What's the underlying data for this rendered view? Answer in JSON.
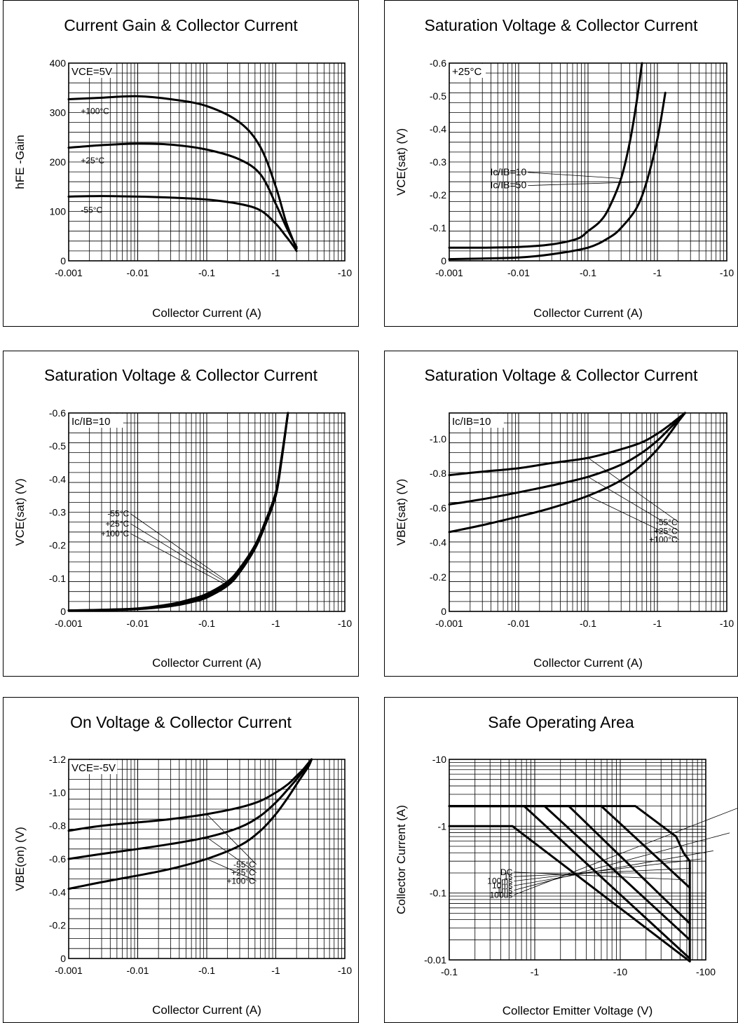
{
  "chart_data": [
    {
      "type": "line",
      "title": "Current Gain & Collector Current",
      "xlabel": "Collector Current (A)",
      "ylabel": "hFE -Gain",
      "x_scale": "log",
      "xlim": [
        -0.001,
        -10
      ],
      "ylim": [
        0,
        400
      ],
      "x_tick_labels": [
        "-0.001",
        "-0.01",
        "-0.1",
        "-1",
        "-10"
      ],
      "y_ticks": [
        0,
        100,
        200,
        300,
        400
      ],
      "y_tick_labels": [
        "0",
        "100",
        "200",
        "300",
        "400"
      ],
      "grid": true,
      "annotations": [
        "VCE=5V"
      ],
      "series": [
        {
          "name": "+100°C",
          "label_at": [
            -0.0015,
            297
          ],
          "x": [
            -0.001,
            -0.003,
            -0.01,
            -0.03,
            -0.1,
            -0.3,
            -0.6,
            -1.0,
            -1.4,
            -1.8,
            -2.0
          ],
          "y": [
            327,
            330,
            333,
            327,
            313,
            280,
            230,
            150,
            80,
            40,
            25
          ]
        },
        {
          "name": "+25°C",
          "label_at": [
            -0.0015,
            197
          ],
          "x": [
            -0.001,
            -0.003,
            -0.01,
            -0.03,
            -0.1,
            -0.3,
            -0.6,
            -1.0,
            -1.4,
            -1.8,
            -2.0
          ],
          "y": [
            229,
            234,
            237,
            235,
            225,
            205,
            175,
            115,
            70,
            40,
            28
          ]
        },
        {
          "name": "-55°C",
          "label_at": [
            -0.0015,
            97
          ],
          "x": [
            -0.001,
            -0.003,
            -0.01,
            -0.03,
            -0.1,
            -0.3,
            -0.6,
            -1.0,
            -1.4,
            -1.8,
            -2.0
          ],
          "y": [
            130,
            131,
            130,
            128,
            124,
            115,
            102,
            75,
            50,
            30,
            20
          ]
        }
      ]
    },
    {
      "type": "line",
      "title": "Saturation Voltage & Collector Current",
      "xlabel": "Collector Current (A)",
      "ylabel": "VCE(sat) (V)",
      "x_scale": "log",
      "xlim": [
        -0.001,
        -10
      ],
      "ylim": [
        0,
        -0.6
      ],
      "x_tick_labels": [
        "-0.001",
        "-0.01",
        "-0.1",
        "-1",
        "-10"
      ],
      "y_ticks": [
        0,
        -0.1,
        -0.2,
        -0.3,
        -0.4,
        -0.5,
        -0.6
      ],
      "y_tick_labels": [
        "0",
        "-0.1",
        "-0.2",
        "-0.3",
        "-0.4",
        "-0.5",
        "-0.6"
      ],
      "grid": true,
      "annotations": [
        "+25°C"
      ],
      "series": [
        {
          "name": "Ic/IB=10",
          "label_at": [
            -0.013,
            -0.26
          ],
          "x": [
            -0.001,
            -0.003,
            -0.01,
            -0.03,
            -0.07,
            -0.1,
            -0.15,
            -0.2,
            -0.3,
            -0.4,
            -0.5,
            -0.6
          ],
          "y": [
            -0.04,
            -0.04,
            -0.042,
            -0.05,
            -0.067,
            -0.09,
            -0.12,
            -0.16,
            -0.25,
            -0.36,
            -0.48,
            -0.6
          ]
        },
        {
          "name": "Ic/IB=50",
          "label_at": [
            -0.013,
            -0.22
          ],
          "x": [
            -0.001,
            -0.003,
            -0.01,
            -0.03,
            -0.1,
            -0.2,
            -0.3,
            -0.5,
            -0.7,
            -1.0,
            -1.3
          ],
          "y": [
            -0.005,
            -0.007,
            -0.01,
            -0.02,
            -0.04,
            -0.07,
            -0.1,
            -0.16,
            -0.24,
            -0.37,
            -0.51
          ]
        }
      ]
    },
    {
      "type": "line",
      "title": "Saturation Voltage & Collector Current",
      "xlabel": "Collector Current (A)",
      "ylabel": "VCE(sat) (V)",
      "x_scale": "log",
      "xlim": [
        -0.001,
        -10
      ],
      "ylim": [
        0,
        -0.6
      ],
      "x_tick_labels": [
        "-0.001",
        "-0.01",
        "-0.1",
        "-1",
        "-10"
      ],
      "y_ticks": [
        0,
        -0.1,
        -0.2,
        -0.3,
        -0.4,
        -0.5,
        -0.6
      ],
      "y_tick_labels": [
        "0",
        "-0.1",
        "-0.2",
        "-0.3",
        "-0.4",
        "-0.5",
        "-0.6"
      ],
      "grid": true,
      "annotations": [
        "Ic/IB=10"
      ],
      "series": [
        {
          "name": "-55°C",
          "label_at": [
            -0.0075,
            -0.287
          ],
          "x": [
            -0.001,
            -0.003,
            -0.01,
            -0.03,
            -0.06,
            -0.1,
            -0.2,
            -0.3,
            -0.5,
            -0.7,
            -1.0,
            -1.2,
            -1.5
          ],
          "y": [
            -0.003,
            -0.005,
            -0.009,
            -0.022,
            -0.037,
            -0.053,
            -0.09,
            -0.13,
            -0.2,
            -0.27,
            -0.36,
            -0.46,
            -0.6
          ]
        },
        {
          "name": "+25°C",
          "label_at": [
            -0.0075,
            -0.257
          ],
          "x": [
            -0.001,
            -0.003,
            -0.01,
            -0.03,
            -0.06,
            -0.1,
            -0.2,
            -0.3,
            -0.5,
            -0.7,
            -1.0,
            -1.2,
            -1.5
          ],
          "y": [
            -0.003,
            -0.004,
            -0.008,
            -0.019,
            -0.033,
            -0.048,
            -0.085,
            -0.125,
            -0.195,
            -0.265,
            -0.355,
            -0.455,
            -0.6
          ]
        },
        {
          "name": "+100°C",
          "label_at": [
            -0.0075,
            -0.227
          ],
          "x": [
            -0.001,
            -0.003,
            -0.01,
            -0.03,
            -0.06,
            -0.1,
            -0.2,
            -0.3,
            -0.5,
            -0.7,
            -1.0,
            -1.2,
            -1.5
          ],
          "y": [
            -0.003,
            -0.004,
            -0.007,
            -0.016,
            -0.028,
            -0.042,
            -0.078,
            -0.118,
            -0.19,
            -0.26,
            -0.35,
            -0.45,
            -0.6
          ]
        }
      ]
    },
    {
      "type": "line",
      "title": "Saturation Voltage & Collector Current",
      "xlabel": "Collector Current (A)",
      "ylabel": "VBE(sat) (V)",
      "x_scale": "log",
      "xlim": [
        -0.001,
        -10
      ],
      "ylim": [
        0,
        -1.15
      ],
      "x_tick_labels": [
        "-0.001",
        "-0.01",
        "-0.1",
        "-1",
        "-10"
      ],
      "y_ticks": [
        0,
        -0.2,
        -0.4,
        -0.6,
        -0.8,
        -1.0
      ],
      "y_tick_labels": [
        "0",
        "-0.2",
        "-0.4",
        "-0.6",
        "-0.8",
        "-1.0"
      ],
      "grid": true,
      "annotations": [
        "Ic/IB=10"
      ],
      "series": [
        {
          "name": "-55°C",
          "label_at": [
            -1.95,
            -0.5
          ],
          "x": [
            -0.001,
            -0.003,
            -0.01,
            -0.03,
            -0.1,
            -0.3,
            -0.6,
            -1.0,
            -1.5,
            -2.0,
            -2.5
          ],
          "y": [
            -0.79,
            -0.81,
            -0.83,
            -0.86,
            -0.89,
            -0.94,
            -0.98,
            -1.03,
            -1.08,
            -1.12,
            -1.15
          ]
        },
        {
          "name": "+25°C",
          "label_at": [
            -1.95,
            -0.45
          ],
          "x": [
            -0.001,
            -0.003,
            -0.01,
            -0.03,
            -0.1,
            -0.3,
            -0.6,
            -1.0,
            -1.5,
            -2.0,
            -2.5
          ],
          "y": [
            -0.62,
            -0.65,
            -0.69,
            -0.73,
            -0.78,
            -0.85,
            -0.92,
            -0.99,
            -1.06,
            -1.11,
            -1.15
          ]
        },
        {
          "name": "+100°C",
          "label_at": [
            -1.95,
            -0.4
          ],
          "x": [
            -0.001,
            -0.003,
            -0.01,
            -0.03,
            -0.1,
            -0.3,
            -0.6,
            -1.0,
            -1.5,
            -2.0,
            -2.5
          ],
          "y": [
            -0.46,
            -0.5,
            -0.55,
            -0.6,
            -0.67,
            -0.76,
            -0.85,
            -0.94,
            -1.03,
            -1.1,
            -1.15
          ]
        }
      ]
    },
    {
      "type": "line",
      "title": "On Voltage & Collector Current",
      "xlabel": "Collector Current (A)",
      "ylabel": "VBE(on) (V)",
      "x_scale": "log",
      "xlim": [
        -0.001,
        -10
      ],
      "ylim": [
        0,
        -1.2
      ],
      "x_tick_labels": [
        "-0.001",
        "-0.01",
        "-0.1",
        "-1",
        "-10"
      ],
      "y_ticks": [
        0,
        -0.2,
        -0.4,
        -0.6,
        -0.8,
        -1.0,
        -1.2
      ],
      "y_tick_labels": [
        "0",
        "-0.2",
        "-0.4",
        "-0.6",
        "-0.8",
        "-1.0",
        "-1.2"
      ],
      "grid": true,
      "annotations": [
        "VCE=-5V"
      ],
      "series": [
        {
          "name": "-55°C",
          "label_at": [
            -0.5,
            -0.55
          ],
          "x": [
            -0.001,
            -0.003,
            -0.01,
            -0.03,
            -0.1,
            -0.3,
            -0.6,
            -1.0,
            -1.5,
            -2.0,
            -2.5,
            -3.0,
            -3.3
          ],
          "y": [
            -0.77,
            -0.8,
            -0.82,
            -0.84,
            -0.87,
            -0.91,
            -0.95,
            -1.0,
            -1.05,
            -1.1,
            -1.14,
            -1.18,
            -1.2
          ]
        },
        {
          "name": "+25°C",
          "label_at": [
            -0.5,
            -0.5
          ],
          "x": [
            -0.001,
            -0.003,
            -0.01,
            -0.03,
            -0.1,
            -0.3,
            -0.6,
            -1.0,
            -1.5,
            -2.0,
            -2.5,
            -3.0,
            -3.3
          ],
          "y": [
            -0.6,
            -0.63,
            -0.66,
            -0.69,
            -0.73,
            -0.79,
            -0.86,
            -0.94,
            -1.02,
            -1.08,
            -1.13,
            -1.17,
            -1.2
          ]
        },
        {
          "name": "+100°C",
          "label_at": [
            -0.5,
            -0.45
          ],
          "x": [
            -0.001,
            -0.003,
            -0.01,
            -0.03,
            -0.1,
            -0.3,
            -0.6,
            -1.0,
            -1.5,
            -2.0,
            -2.5,
            -3.0,
            -3.3
          ],
          "y": [
            -0.42,
            -0.46,
            -0.5,
            -0.54,
            -0.6,
            -0.68,
            -0.77,
            -0.87,
            -0.97,
            -1.05,
            -1.11,
            -1.16,
            -1.2
          ]
        }
      ]
    },
    {
      "type": "line",
      "title": "Safe Operating Area",
      "xlabel": "Collector Emitter Voltage (V)",
      "ylabel": "Collector Current (A)",
      "x_scale": "log",
      "y_scale": "log",
      "xlim": [
        -0.1,
        -100
      ],
      "ylim": [
        -0.01,
        -10
      ],
      "x_tick_labels": [
        "-0.1",
        "-1",
        "-10",
        "-100"
      ],
      "y_tick_labels": [
        "-0.01",
        "-0.1",
        "-1",
        "-10"
      ],
      "grid": true,
      "series": [
        {
          "name": "DC",
          "label_at": [
            -0.55,
            -0.187
          ],
          "x": [
            -0.1,
            -0.55,
            -65
          ],
          "y": [
            -1.0,
            -1.0,
            -0.0095
          ]
        },
        {
          "name": "1s",
          "label_at": [
            -0.55,
            -0.16
          ],
          "x": [
            -0.1,
            -0.75,
            -65
          ],
          "y": [
            -2.0,
            -2.0,
            -0.0105
          ]
        },
        {
          "name": "100ms",
          "label_at": [
            -0.55,
            -0.137
          ],
          "x": [
            -0.1,
            -1.3,
            -65
          ],
          "y": [
            -2.0,
            -2.0,
            -0.02
          ]
        },
        {
          "name": "10ms",
          "label_at": [
            -0.55,
            -0.117
          ],
          "x": [
            -0.1,
            -2.5,
            -65
          ],
          "y": [
            -2.0,
            -2.0,
            -0.035
          ]
        },
        {
          "name": "1ms",
          "label_at": [
            -0.55,
            -0.1
          ],
          "x": [
            -0.1,
            -6.0,
            -65
          ],
          "y": [
            -2.0,
            -2.0,
            -0.12
          ]
        },
        {
          "name": "100us",
          "label_at": [
            -0.55,
            -0.085
          ],
          "x": [
            -0.1,
            -15,
            -45,
            -55,
            -65,
            -65
          ],
          "y": [
            -2.0,
            -2.0,
            -0.7,
            -0.4,
            -0.3,
            -0.0095
          ]
        }
      ]
    }
  ]
}
